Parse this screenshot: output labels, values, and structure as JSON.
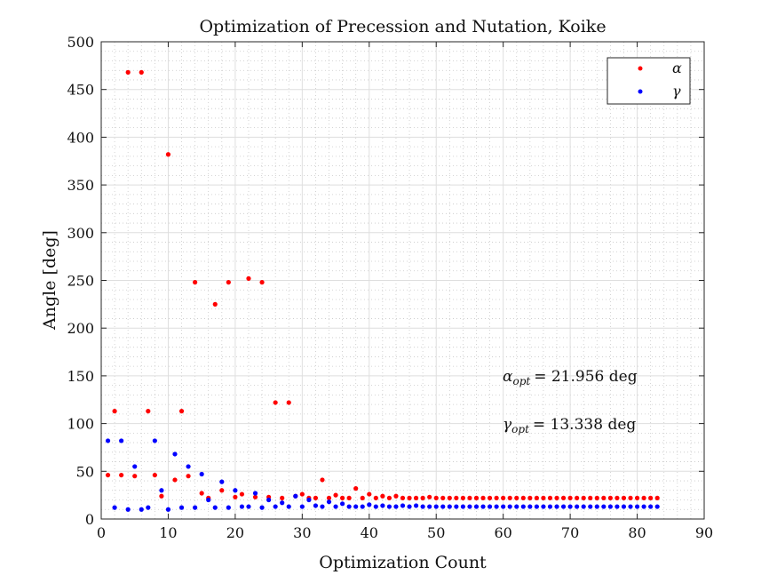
{
  "chart_data": {
    "type": "scatter",
    "title": "Optimization of Precession and Nutation, Koike",
    "xlabel": "Optimization Count",
    "ylabel": "Angle [deg]",
    "xlim": [
      0,
      90
    ],
    "ylim": [
      0,
      500
    ],
    "xticks": [
      0,
      10,
      20,
      30,
      40,
      50,
      60,
      70,
      80,
      90
    ],
    "yticks": [
      0,
      50,
      100,
      150,
      200,
      250,
      300,
      350,
      400,
      450,
      500
    ],
    "grid": true,
    "minor_grid": true,
    "legend_position": "top-right",
    "annotations": [
      {
        "symbol": "α",
        "subscript": "opt",
        "text": "= 21.956 deg"
      },
      {
        "symbol": "γ",
        "subscript": "opt",
        "text": "= 13.338 deg"
      }
    ],
    "series": [
      {
        "name": "α",
        "color": "#ff0000",
        "x": [
          1,
          2,
          3,
          4,
          5,
          6,
          7,
          8,
          9,
          10,
          11,
          12,
          13,
          14,
          15,
          16,
          17,
          18,
          19,
          20,
          21,
          22,
          23,
          24,
          25,
          26,
          27,
          28,
          29,
          30,
          31,
          32,
          33,
          34,
          35,
          36,
          37,
          38,
          39,
          40,
          41,
          42,
          43,
          44,
          45,
          46,
          47,
          48,
          49,
          50,
          51,
          52,
          53,
          54,
          55,
          56,
          57,
          58,
          59,
          60,
          61,
          62,
          63,
          64,
          65,
          66,
          67,
          68,
          69,
          70,
          71,
          72,
          73,
          74,
          75,
          76,
          77,
          78,
          79,
          80,
          81,
          82,
          83
        ],
        "y": [
          46,
          113,
          46,
          468,
          45,
          468,
          113,
          46,
          24,
          382,
          41,
          113,
          45,
          248,
          27,
          22,
          225,
          30,
          248,
          23,
          26,
          252,
          23,
          248,
          23,
          122,
          22,
          122,
          24,
          26,
          22,
          22,
          41,
          22,
          25,
          22,
          22,
          32,
          22,
          26,
          22,
          24,
          22,
          24,
          22,
          22,
          22,
          22,
          23,
          22,
          22,
          22,
          22,
          22,
          22,
          22,
          22,
          22,
          22,
          22,
          22,
          22,
          22,
          22,
          22,
          22,
          22,
          22,
          22,
          22,
          22,
          22,
          22,
          22,
          22,
          22,
          22,
          22,
          22,
          22,
          22,
          22,
          22
        ]
      },
      {
        "name": "γ",
        "color": "#0000ff",
        "x": [
          1,
          2,
          3,
          4,
          5,
          6,
          7,
          8,
          9,
          10,
          11,
          12,
          13,
          14,
          15,
          16,
          17,
          18,
          19,
          20,
          21,
          22,
          23,
          24,
          25,
          26,
          27,
          28,
          29,
          30,
          31,
          32,
          33,
          34,
          35,
          36,
          37,
          38,
          39,
          40,
          41,
          42,
          43,
          44,
          45,
          46,
          47,
          48,
          49,
          50,
          51,
          52,
          53,
          54,
          55,
          56,
          57,
          58,
          59,
          60,
          61,
          62,
          63,
          64,
          65,
          66,
          67,
          68,
          69,
          70,
          71,
          72,
          73,
          74,
          75,
          76,
          77,
          78,
          79,
          80,
          81,
          82,
          83
        ],
        "y": [
          82,
          12,
          82,
          10,
          55,
          10,
          12,
          82,
          30,
          10,
          68,
          12,
          55,
          12,
          47,
          20,
          12,
          39,
          12,
          30,
          13,
          13,
          27,
          12,
          20,
          13,
          17,
          13,
          24,
          13,
          20,
          14,
          13,
          18,
          13,
          16,
          13,
          13,
          13,
          15,
          13,
          14,
          13,
          13,
          14,
          13,
          14,
          13,
          13,
          13,
          13,
          13,
          13,
          13,
          13,
          13,
          13,
          13,
          13,
          13,
          13,
          13,
          13,
          13,
          13,
          13,
          13,
          13,
          13,
          13,
          13,
          13,
          13,
          13,
          13,
          13,
          13,
          13,
          13,
          13,
          13,
          13,
          13
        ]
      }
    ]
  }
}
